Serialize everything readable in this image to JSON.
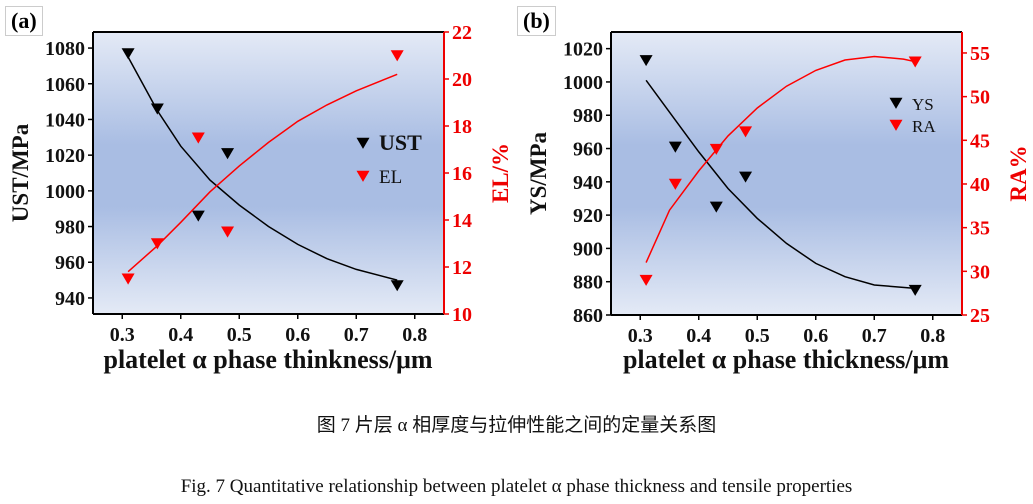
{
  "captions": {
    "zh": "图 7  片层 α 相厚度与拉伸性能之间的定量关系图",
    "en": "Fig. 7 Quantitative relationship between platelet α phase thickness and tensile properties"
  },
  "colors": {
    "left_series": "#000000",
    "right_series": "#ff0000",
    "plot_bg_edge": "#e4eaf6",
    "plot_bg_mid": "#a9bde3"
  },
  "chart_data": [
    {
      "panel": "(a)",
      "type": "scatter",
      "xlabel": "platelet α phase thinkness/μm",
      "ylabel": "UST/MPa",
      "y2label": "EL/%",
      "xlim": [
        0.25,
        0.85
      ],
      "ylim": [
        931,
        1089
      ],
      "y2lim": [
        10,
        22
      ],
      "xticks": [
        0.3,
        0.4,
        0.5,
        0.6,
        0.7,
        0.8
      ],
      "yticks": [
        940,
        960,
        980,
        1000,
        1020,
        1040,
        1060,
        1080
      ],
      "y2ticks": [
        10,
        12,
        14,
        16,
        18,
        20,
        22
      ],
      "grid": false,
      "legend": "center-right",
      "x": [
        0.31,
        0.36,
        0.43,
        0.48,
        0.77
      ],
      "series": [
        {
          "name": "UST",
          "axis": "left",
          "marker": "down-triangle",
          "values": [
            1077,
            1046,
            986,
            1021,
            947
          ],
          "fit": {
            "x": [
              0.31,
              0.36,
              0.4,
              0.45,
              0.5,
              0.55,
              0.6,
              0.65,
              0.7,
              0.77
            ],
            "y": [
              1075,
              1045,
              1025,
              1006,
              992,
              980,
              970,
              962,
              956,
              950
            ]
          }
        },
        {
          "name": "EL",
          "axis": "right",
          "marker": "down-triangle",
          "values": [
            11.5,
            13,
            17.5,
            13.5,
            21
          ],
          "fit": {
            "x": [
              0.31,
              0.36,
              0.4,
              0.45,
              0.5,
              0.55,
              0.6,
              0.65,
              0.7,
              0.77
            ],
            "y": [
              11.8,
              12.9,
              13.9,
              15.2,
              16.3,
              17.3,
              18.2,
              18.9,
              19.5,
              20.2
            ]
          }
        }
      ]
    },
    {
      "panel": "(b)",
      "type": "scatter",
      "xlabel": "platelet α phase thickness/μm",
      "ylabel": "YS/MPa",
      "y2label": "RA%",
      "xlim": [
        0.25,
        0.85
      ],
      "ylim": [
        860,
        1030
      ],
      "y2lim": [
        25,
        57.4
      ],
      "xticks": [
        0.3,
        0.4,
        0.5,
        0.6,
        0.7,
        0.8
      ],
      "yticks": [
        860,
        880,
        900,
        920,
        940,
        960,
        980,
        1000,
        1020
      ],
      "y2ticks": [
        25,
        30,
        35,
        40,
        45,
        50,
        55
      ],
      "grid": false,
      "legend": "upper-right",
      "x": [
        0.31,
        0.36,
        0.43,
        0.48,
        0.77
      ],
      "series": [
        {
          "name": "YS",
          "axis": "left",
          "marker": "down-triangle",
          "values": [
            1013,
            961,
            925,
            943,
            875
          ],
          "fit": {
            "x": [
              0.31,
              0.36,
              0.4,
              0.45,
              0.5,
              0.55,
              0.6,
              0.65,
              0.7,
              0.77
            ],
            "y": [
              1001,
              977,
              958,
              936,
              918,
              903,
              891,
              883,
              878,
              876
            ]
          }
        },
        {
          "name": "RA",
          "axis": "right",
          "marker": "down-triangle",
          "values": [
            29,
            40,
            44,
            46,
            54
          ],
          "fit": {
            "x": [
              0.31,
              0.35,
              0.4,
              0.45,
              0.5,
              0.55,
              0.6,
              0.65,
              0.7,
              0.75,
              0.77
            ],
            "y": [
              31,
              37,
              41.5,
              45.5,
              48.7,
              51.2,
              53,
              54.2,
              54.6,
              54.3,
              54
            ]
          }
        }
      ]
    }
  ]
}
